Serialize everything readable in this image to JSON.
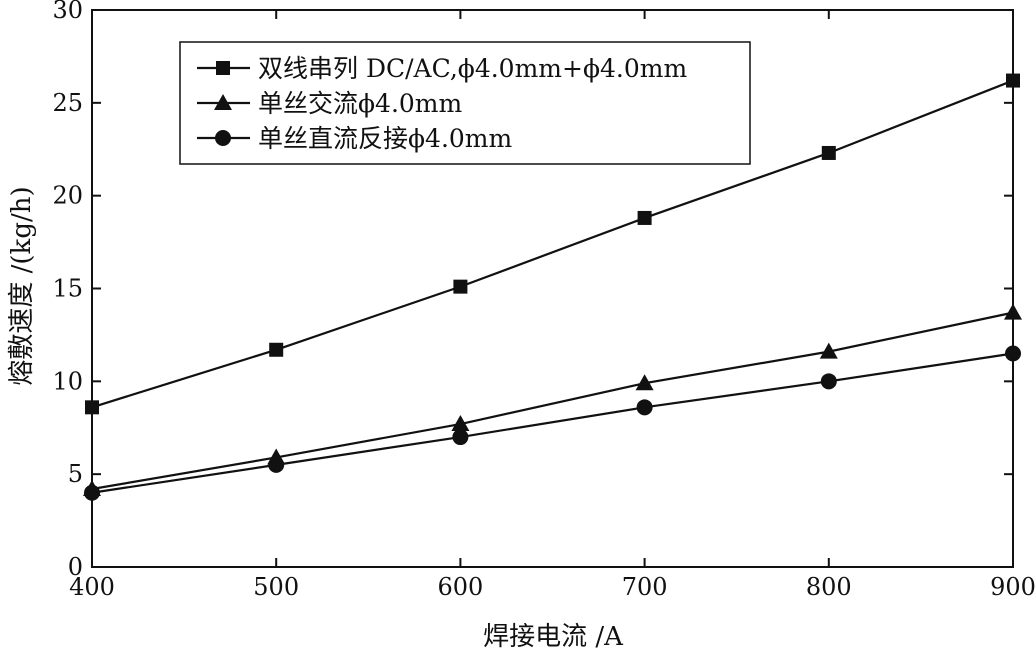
{
  "chart_data": {
    "type": "line",
    "xlabel": "焊接电流 /A",
    "ylabel": "熔敷速度 /(kg/h)",
    "xlim": [
      400,
      900
    ],
    "ylim": [
      0,
      30
    ],
    "x_ticks": [
      400,
      500,
      600,
      700,
      800,
      900
    ],
    "y_ticks": [
      0,
      5,
      10,
      15,
      20,
      25,
      30
    ],
    "grid": false,
    "legend_position": "top-left",
    "x": [
      400,
      500,
      600,
      700,
      800,
      900
    ],
    "series": [
      {
        "name": "双线串列 DC/AC,ϕ4.0mm+ϕ4.0mm",
        "marker": "square",
        "values": [
          8.6,
          11.7,
          15.1,
          18.8,
          22.3,
          26.2
        ]
      },
      {
        "name": "单丝交流ϕ4.0mm",
        "marker": "triangle",
        "values": [
          4.2,
          5.9,
          7.7,
          9.9,
          11.6,
          13.7
        ]
      },
      {
        "name": "单丝直流反接ϕ4.0mm",
        "marker": "circle",
        "values": [
          4.0,
          5.5,
          7.0,
          8.6,
          10.0,
          11.5
        ]
      }
    ]
  },
  "colors": {
    "line": "#111111",
    "background": "#ffffff"
  }
}
